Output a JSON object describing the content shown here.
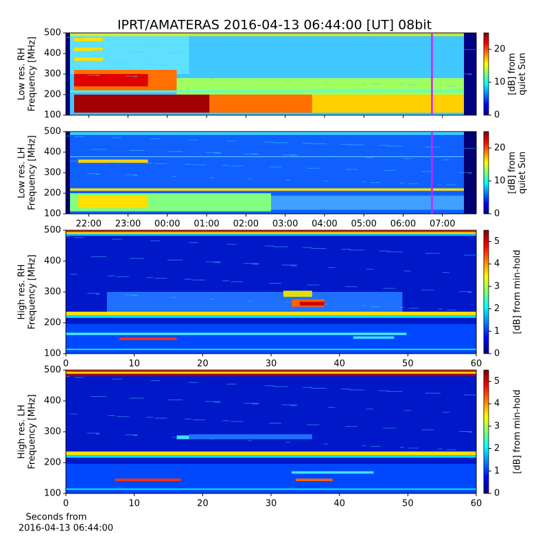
{
  "title": "IPRT/AMATERAS 2016-04-13 06:44:00 [UT]   08bit",
  "chart_data": [
    {
      "type": "heatmap",
      "ylabel": [
        "Low res. RH",
        "Frequency [MHz]"
      ],
      "ylim": [
        100,
        500
      ],
      "yticks": [
        100,
        200,
        300,
        400,
        500
      ],
      "xlim": [
        21.42,
        31.86
      ],
      "cursor_x": 30.733,
      "cursor_color": "#d020ff",
      "colorbar": {
        "label": [
          "[dB] from",
          "quiet Sun"
        ],
        "lim": [
          0,
          25
        ],
        "ticks": [
          0,
          10,
          20
        ]
      }
    },
    {
      "type": "heatmap",
      "ylabel": [
        "Low res. LH",
        "Frequency [MHz]"
      ],
      "ylim": [
        100,
        500
      ],
      "yticks": [
        100,
        200,
        300,
        400,
        500
      ],
      "xlim": [
        21.42,
        31.86
      ],
      "cursor_x": 30.733,
      "cursor_color": "#d020ff",
      "xticks": [
        {
          "value": 22,
          "label": "22:00"
        },
        {
          "value": 23,
          "label": "23:00"
        },
        {
          "value": 24,
          "label": "00:00"
        },
        {
          "value": 25,
          "label": "01:00"
        },
        {
          "value": 26,
          "label": "02:00"
        },
        {
          "value": 27,
          "label": "03:00"
        },
        {
          "value": 28,
          "label": "04:00"
        },
        {
          "value": 29,
          "label": "05:00"
        },
        {
          "value": 30,
          "label": "06:00"
        },
        {
          "value": 31,
          "label": "07:00"
        }
      ],
      "colorbar": {
        "label": [
          "[dB] from",
          "quiet Sun"
        ],
        "lim": [
          0,
          25
        ],
        "ticks": [
          0,
          10,
          20
        ]
      }
    },
    {
      "type": "heatmap",
      "ylabel": [
        "High res. RH",
        "Frequency [MHz]"
      ],
      "ylim": [
        100,
        500
      ],
      "yticks": [
        100,
        200,
        300,
        400,
        500
      ],
      "xlim": [
        0,
        60
      ],
      "xticks": [
        0,
        10,
        20,
        30,
        40,
        50,
        60
      ],
      "colorbar": {
        "label": [
          "[dB] from min-hold"
        ],
        "lim": [
          0,
          5.5
        ],
        "ticks": [
          0,
          1,
          2,
          3,
          4,
          5
        ]
      }
    },
    {
      "type": "heatmap",
      "ylabel": [
        "High res. LH",
        "Frequency [MHz]"
      ],
      "ylim": [
        100,
        500
      ],
      "yticks": [
        100,
        200,
        300,
        400,
        500
      ],
      "xlim": [
        0,
        60
      ],
      "xticks": [
        0,
        10,
        20,
        30,
        40,
        50,
        60
      ],
      "xlabel": [
        "Seconds from",
        "2016-04-13 06:44:00"
      ],
      "colorbar": {
        "label": [
          "[dB] from min-hold"
        ],
        "lim": [
          0,
          5.5
        ],
        "ticks": [
          0,
          1,
          2,
          3,
          4,
          5
        ]
      }
    }
  ]
}
